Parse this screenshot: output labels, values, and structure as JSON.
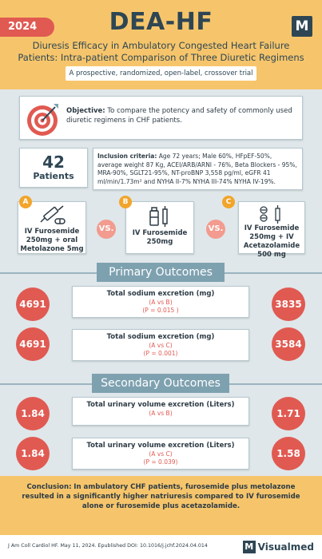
{
  "header": {
    "year": "2024",
    "title": "DEA-HF",
    "logo_letter": "M",
    "subtitle_line1": "Diuresis Efficacy in Ambulatory Congested Heart Failure",
    "subtitle_line2": "Patients: Intra-patient Comparison of Three Diuretic Regimens",
    "design": "A prospective, randomized, open-label, crossover trial"
  },
  "objective": {
    "label": "Objective:",
    "text": "To compare the potency and safety of commonly used diuretic regimens in CHF patients.",
    "icon": "target-icon"
  },
  "patients": {
    "count": "42",
    "label": "Patients"
  },
  "inclusion": {
    "label": "Inclusion criteria:",
    "text": "Age 72 years; Male 60%, HFpEF-50%, average weight 87 Kg, ACEI/ARB/ARNI - 76%, Beta Blockers - 95%, MRA-90%, SGLT21-95%, NT-proBNP 3,558 pg/ml, eGFR 41 ml/min/1.73m² and NYHA II-7% NYHA III-74% NYHA IV-19%."
  },
  "regimens": [
    {
      "badge": "A",
      "label_line1": "IV Furosemide",
      "label_line2": "250mg + oral",
      "label_line3": "Metolazone 5mg"
    },
    {
      "badge": "B",
      "label_line1": "IV Furosemide",
      "label_line2": "250mg",
      "label_line3": ""
    },
    {
      "badge": "C",
      "label_line1": "IV Furosemide",
      "label_line2": "250mg + IV",
      "label_line3": "Acetazolamide 500 mg"
    }
  ],
  "vs_label": "VS.",
  "primary": {
    "title": "Primary Outcomes",
    "rows": [
      {
        "left": "4691",
        "title": "Total sodium excretion (mg)",
        "cmp": "(A vs B)",
        "p": "(P = 0.015 )",
        "right": "3835"
      },
      {
        "left": "4691",
        "title": "Total sodium excretion (mg)",
        "cmp": "(A vs C)",
        "p": "(P = 0.001)",
        "right": "3584"
      }
    ]
  },
  "secondary": {
    "title": "Secondary Outcomes",
    "rows": [
      {
        "left": "1.84",
        "title": "Total urinary volume excretion (Liters)",
        "cmp": "(A vs B)",
        "p": "",
        "right": "1.71"
      },
      {
        "left": "1.84",
        "title": "Total urinary volume excretion (Liters)",
        "cmp": "(A vs C)",
        "p": "(P = 0.039)",
        "right": "1.58"
      }
    ]
  },
  "conclusion": {
    "label": "Conclusion:",
    "text": "In ambulatory CHF patients, furosemide plus metolazone resulted in a significantly higher natriuresis compared to IV furosemide alone or furosemide plus acetazolamide."
  },
  "footer": {
    "citation": "J Am Coll Cardiol HF. May 11, 2024. Epublished DOI: 10.1016/j.jchf.2024.04.014",
    "brand_letter": "M",
    "brand": "Visualmed"
  },
  "colors": {
    "accent": "#e05a52",
    "header_bg": "#f6c56b",
    "section": "#7ea1b0",
    "badge": "#f2a52a"
  }
}
